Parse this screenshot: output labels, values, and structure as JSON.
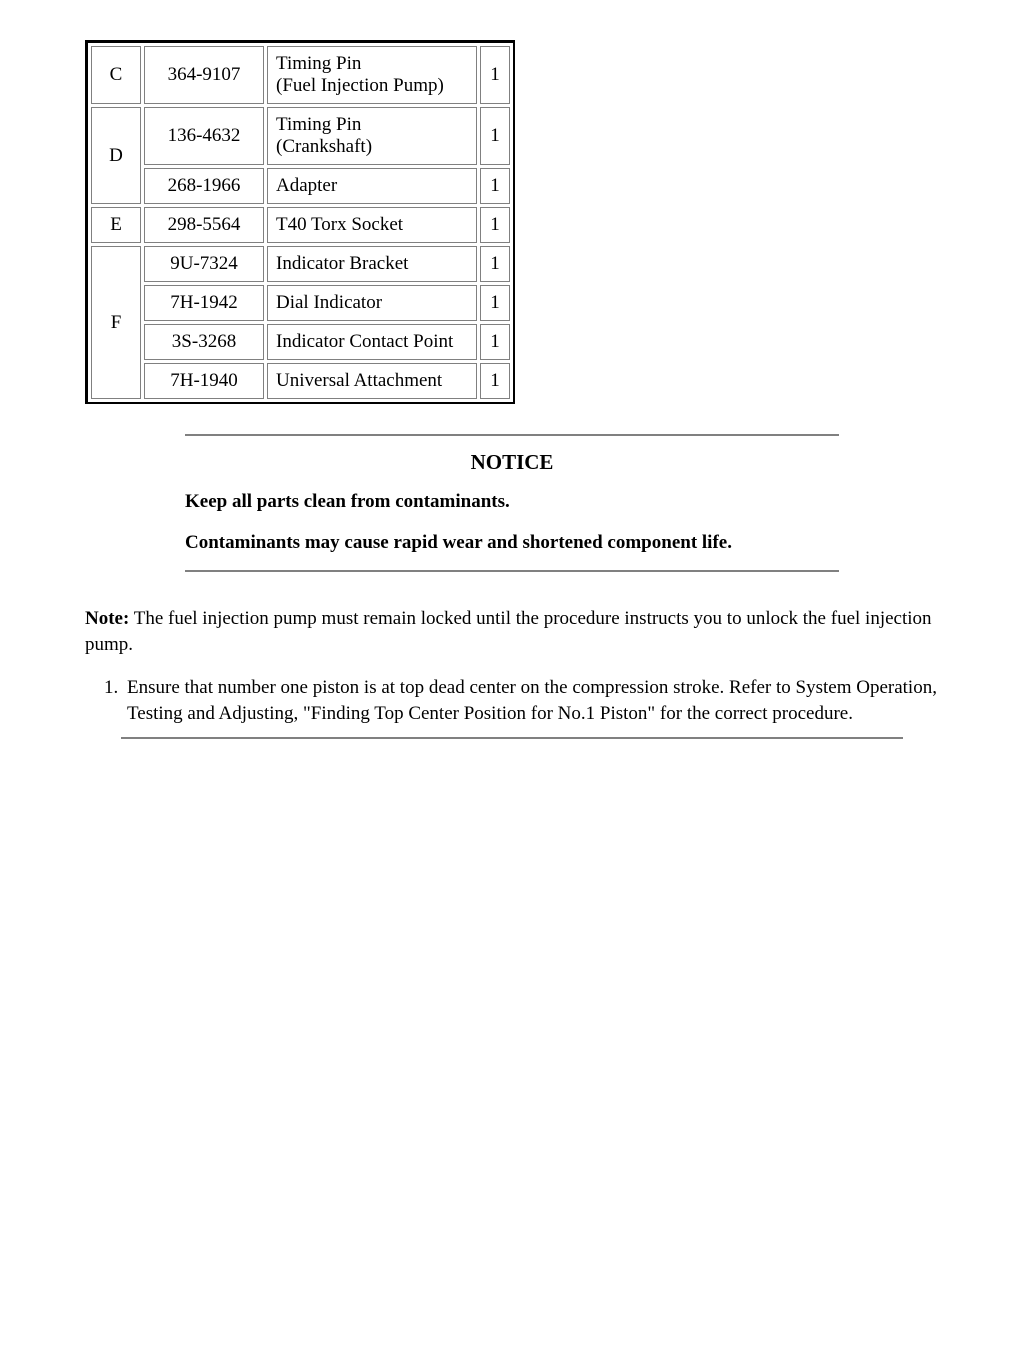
{
  "table": {
    "rows": [
      {
        "letter": "C",
        "rowspan": 1,
        "partnum": "364-9107",
        "desc": "Timing Pin\n(Fuel Injection Pump)",
        "qty": "1"
      },
      {
        "letter": "D",
        "rowspan": 2,
        "partnum": "136-4632",
        "desc": "Timing Pin\n(Crankshaft)",
        "qty": "1"
      },
      {
        "letter": "",
        "rowspan": 0,
        "partnum": "268-1966",
        "desc": "Adapter",
        "qty": "1"
      },
      {
        "letter": "E",
        "rowspan": 1,
        "partnum": "298-5564",
        "desc": "T40 Torx Socket",
        "qty": "1"
      },
      {
        "letter": "F",
        "rowspan": 4,
        "partnum": "9U-7324",
        "desc": "Indicator Bracket",
        "qty": "1"
      },
      {
        "letter": "",
        "rowspan": 0,
        "partnum": "7H-1942",
        "desc": "Dial Indicator",
        "qty": "1"
      },
      {
        "letter": "",
        "rowspan": 0,
        "partnum": "3S-3268",
        "desc": "Indicator Contact Point",
        "qty": "1"
      },
      {
        "letter": "",
        "rowspan": 0,
        "partnum": "7H-1940",
        "desc": "Universal Attachment",
        "qty": "1"
      }
    ]
  },
  "notice": {
    "title": "NOTICE",
    "line1": "Keep all parts clean from contaminants.",
    "line2": "Contaminants may cause rapid wear and shortened component life."
  },
  "note": {
    "label": "Note:",
    "text": " The fuel injection pump must remain locked until the procedure instructs you to unlock the fuel injection pump."
  },
  "steps": {
    "item1": "Ensure that number one piston is at top dead center on the compression stroke. Refer to System Operation, Testing and Adjusting, \"Finding Top Center Position for No.1 Piston\" for the correct procedure."
  }
}
